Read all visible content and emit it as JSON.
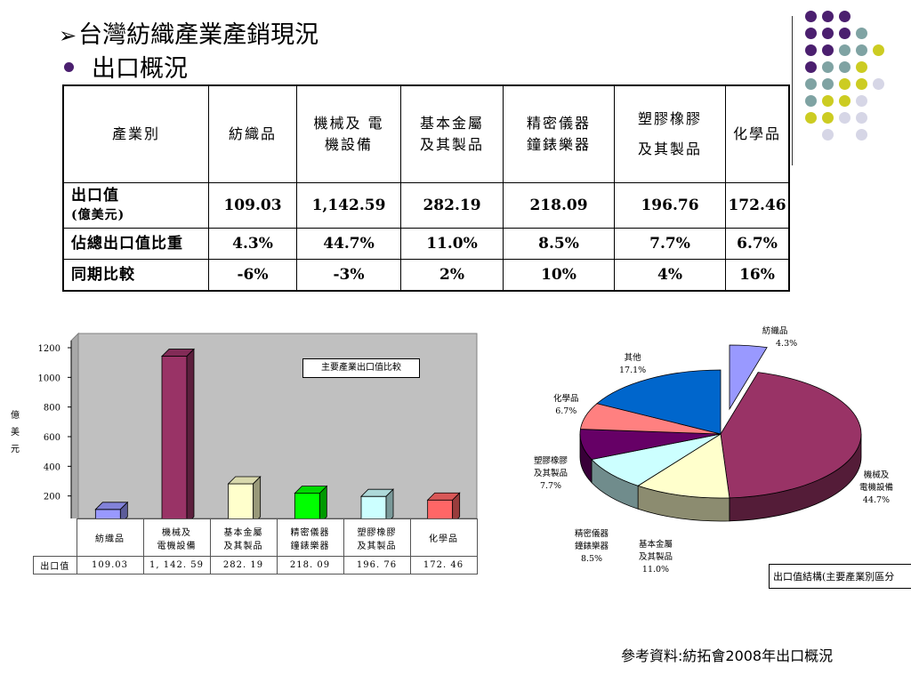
{
  "slide": {
    "title": "台灣紡織產業產銷現況",
    "subtitle": "出口概況",
    "source": "參考資料:紡拓會2008年出口概況"
  },
  "table": {
    "header": {
      "label": "產業別",
      "columns": [
        {
          "line1": "紡織品",
          "line2": ""
        },
        {
          "line1": "機械及 電",
          "line2": "機設備"
        },
        {
          "line1": "基本金屬",
          "line2": "及其製品"
        },
        {
          "line1": "精密儀器",
          "line2": "鐘錶樂器"
        },
        {
          "line1": "塑膠橡膠",
          "line2": "及其製品"
        },
        {
          "line1": "化學品",
          "line2": ""
        }
      ]
    },
    "rows": [
      {
        "label": "出口值",
        "unit": "(億美元)",
        "values": [
          "109.03",
          "1,142.59",
          "282.19",
          "218.09",
          "196.76",
          "172.46"
        ]
      },
      {
        "label": "佔總出口值比重",
        "unit": "",
        "values": [
          "4.3%",
          "44.7%",
          "11.0%",
          "8.5%",
          "7.7%",
          "6.7%"
        ]
      },
      {
        "label": "同期比較",
        "unit": "",
        "values": [
          "-6%",
          "-3%",
          "2%",
          "10%",
          "4%",
          "16%"
        ]
      }
    ]
  },
  "bar_table": {
    "row_label": "出口值",
    "categories": [
      {
        "line1": "紡織品",
        "line2": ""
      },
      {
        "line1": "機械及",
        "line2": "電機設備"
      },
      {
        "line1": "基本金屬",
        "line2": "及其製品"
      },
      {
        "line1": "精密儀器",
        "line2": "鐘錶樂器"
      },
      {
        "line1": "塑膠橡膠",
        "line2": "及其製品"
      },
      {
        "line1": "化學品",
        "line2": ""
      }
    ],
    "values": [
      "109.03",
      "1, 142. 59",
      "282. 19",
      "218. 09",
      "196. 76",
      "172. 46"
    ]
  },
  "pie_labels": [
    {
      "line1": "紡織品",
      "line2": "",
      "pct": "4.3%"
    },
    {
      "line1": "機械及",
      "line2": "電機設備",
      "pct": "44.7%"
    },
    {
      "line1": "基本金屬",
      "line2": "及其製品",
      "pct": "11.0%"
    },
    {
      "line1": "精密儀器",
      "line2": "鐘錶樂器",
      "pct": "8.5%"
    },
    {
      "line1": "塑膠橡膠",
      "line2": "及其製品",
      "pct": "7.7%"
    },
    {
      "line1": "化學品",
      "line2": "",
      "pct": "6.7%"
    },
    {
      "line1": "其他",
      "line2": "",
      "pct": "17.1%"
    }
  ],
  "chart_data": [
    {
      "type": "bar",
      "title": "主要產業出口值比較",
      "ylabel": "億美元",
      "xlabel": "",
      "categories": [
        "紡織品",
        "機械及電機設備",
        "基本金屬及其製品",
        "精密儀器鐘錶樂器",
        "塑膠橡膠及其製品",
        "化學品"
      ],
      "series": [
        {
          "name": "出口值",
          "values": [
            109.03,
            1142.59,
            282.19,
            218.09,
            196.76,
            172.46
          ]
        }
      ],
      "ylim": [
        0,
        1200
      ],
      "yticks": [
        "0",
        "200",
        "400",
        "600",
        "800",
        "1000",
        "1200"
      ],
      "grid": false,
      "colors": [
        "#9999ff",
        "#993366",
        "#ffffcc",
        "#00ff00",
        "#ccffff",
        "#ff6666"
      ]
    },
    {
      "type": "pie",
      "title": "出口值結構(主要產業別區分",
      "categories": [
        "紡織品",
        "機械及電機設備",
        "基本金屬及其製品",
        "精密儀器鐘錶樂器",
        "塑膠橡膠及其製品",
        "化學品",
        "其他"
      ],
      "values": [
        4.3,
        44.7,
        11.0,
        8.5,
        7.7,
        6.7,
        17.1
      ],
      "colors": [
        "#9999ff",
        "#993366",
        "#ffffcc",
        "#ccffff",
        "#660066",
        "#ff8080",
        "#0066cc"
      ],
      "exploded": "紡織品"
    }
  ]
}
